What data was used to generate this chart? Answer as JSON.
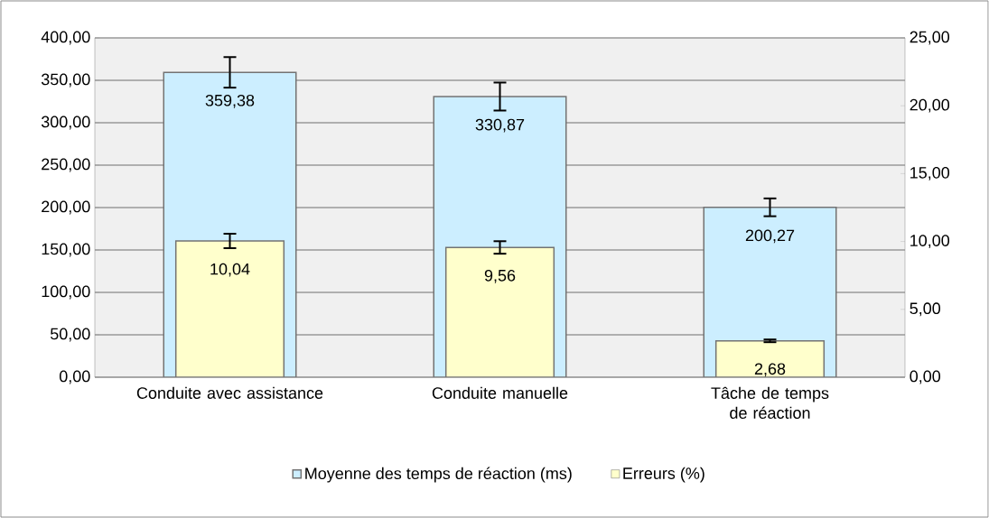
{
  "chart_data": {
    "type": "bar",
    "categories": [
      "Conduite avec assistance",
      "Conduite manuelle",
      "Tâche de temps de réaction"
    ],
    "series": [
      {
        "name": "Moyenne des temps de réaction (ms)",
        "color": "#cceeff",
        "values": [
          359.38,
          330.87,
          200.27
        ],
        "errors": [
          18,
          16.5,
          10.5
        ],
        "value_labels": [
          "359,38",
          "330,87",
          "200,27"
        ]
      },
      {
        "name": "Erreurs (%)",
        "color": "#ffffcc",
        "axis": "y2",
        "values": [
          10.04,
          9.56,
          2.68
        ],
        "errors": [
          0.53,
          0.46,
          0.1
        ],
        "value_labels": [
          "10,04",
          "9,56",
          "2,68"
        ]
      }
    ],
    "ylim": [
      0,
      400
    ],
    "yticks": [
      {
        "value": 0,
        "label": "0,00"
      },
      {
        "value": 50,
        "label": "50,00"
      },
      {
        "value": 100,
        "label": "100,00"
      },
      {
        "value": 150,
        "label": "150,00"
      },
      {
        "value": 200,
        "label": "200,00"
      },
      {
        "value": 250,
        "label": "250,00"
      },
      {
        "value": 300,
        "label": "300,00"
      },
      {
        "value": 350,
        "label": "350,00"
      },
      {
        "value": 400,
        "label": "400,00"
      }
    ],
    "y2lim": [
      0,
      25
    ],
    "y2ticks": [
      {
        "value": 0,
        "label": "0,00"
      },
      {
        "value": 5,
        "label": "5,00"
      },
      {
        "value": 10,
        "label": "10,00"
      },
      {
        "value": 15,
        "label": "15,00"
      },
      {
        "value": 20,
        "label": "20,00"
      },
      {
        "value": 25,
        "label": "25,00"
      }
    ],
    "grid": "y",
    "legend": "bottom"
  }
}
